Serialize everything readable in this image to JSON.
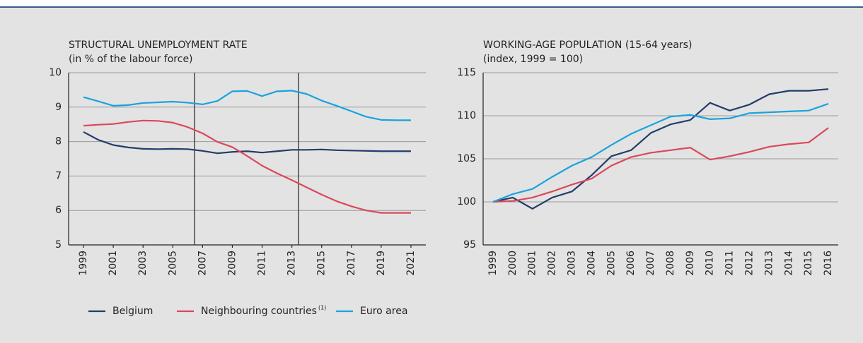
{
  "chart_data": [
    {
      "type": "line",
      "title": "STRUCTURAL UNEMPLOYMENT RATE",
      "subtitle": "(in % of the labour force)",
      "x": [
        1999,
        2000,
        2001,
        2002,
        2003,
        2004,
        2005,
        2006,
        2007,
        2008,
        2009,
        2010,
        2011,
        2012,
        2013,
        2014,
        2015,
        2016,
        2017,
        2018,
        2019,
        2020,
        2021
      ],
      "xlim": [
        1998,
        2022
      ],
      "xticks": [
        1999,
        2001,
        2003,
        2005,
        2007,
        2009,
        2011,
        2013,
        2015,
        2017,
        2019,
        2021
      ],
      "ylim": [
        5,
        10
      ],
      "yticks": [
        5,
        6,
        7,
        8,
        9,
        10
      ],
      "grid": true,
      "series": [
        {
          "name": "Belgium",
          "color": "#233d6b",
          "values": [
            8.28,
            8.05,
            7.9,
            7.83,
            7.79,
            7.78,
            7.79,
            7.78,
            7.73,
            7.66,
            7.7,
            7.72,
            7.68,
            7.72,
            7.76,
            7.76,
            7.77,
            7.75,
            7.74,
            7.73,
            7.72,
            7.72,
            7.72
          ]
        },
        {
          "name": "Neighbouring countries",
          "note": "(1)",
          "color": "#d9495a",
          "values": [
            8.46,
            8.49,
            8.51,
            8.57,
            8.61,
            8.6,
            8.55,
            8.42,
            8.24,
            7.99,
            7.84,
            7.58,
            7.3,
            7.08,
            6.88,
            6.67,
            6.46,
            6.27,
            6.12,
            6.0,
            5.93,
            5.93,
            5.93
          ]
        },
        {
          "name": "Euro area",
          "color": "#1aa3dd",
          "values": [
            9.29,
            9.17,
            9.04,
            9.06,
            9.12,
            9.14,
            9.16,
            9.13,
            9.08,
            9.18,
            9.46,
            9.47,
            9.32,
            9.46,
            9.48,
            9.38,
            9.19,
            9.04,
            8.88,
            8.72,
            8.63,
            8.62,
            8.62
          ]
        }
      ]
    },
    {
      "type": "line",
      "title": "WORKING-AGE POPULATION (15-64 years)",
      "subtitle": "(index, 1999 = 100)",
      "categories": [
        "1999",
        "2000",
        "2001",
        "2002",
        "2003",
        "2004",
        "2005",
        "2006",
        "2007",
        "2008",
        "2009",
        "2010",
        "2011",
        "2012",
        "2013",
        "2014",
        "2015",
        "2016"
      ],
      "ylim": [
        95,
        115
      ],
      "yticks": [
        95,
        100,
        105,
        110,
        115
      ],
      "grid": true,
      "series": [
        {
          "color": "#233d6b",
          "values": [
            100,
            100.5,
            99.2,
            100.5,
            101.2,
            103.1,
            105.3,
            106,
            108,
            109,
            109.5,
            111.5,
            110.6,
            111.3,
            112.5,
            112.9,
            112.9,
            113.1
          ]
        },
        {
          "color": "#d9495a",
          "values": [
            100,
            100.1,
            100.5,
            101.2,
            102,
            102.7,
            104.2,
            105.2,
            105.7,
            106,
            106.3,
            104.9,
            105.3,
            105.8,
            106.4,
            106.7,
            106.9,
            108.6
          ]
        },
        {
          "color": "#1aa3dd",
          "values": [
            100,
            100.9,
            101.5,
            102.9,
            104.2,
            105.2,
            106.6,
            107.9,
            108.9,
            109.9,
            110.1,
            109.6,
            109.7,
            110.3,
            110.4,
            110.5,
            110.6,
            111.4
          ]
        }
      ]
    }
  ]
}
